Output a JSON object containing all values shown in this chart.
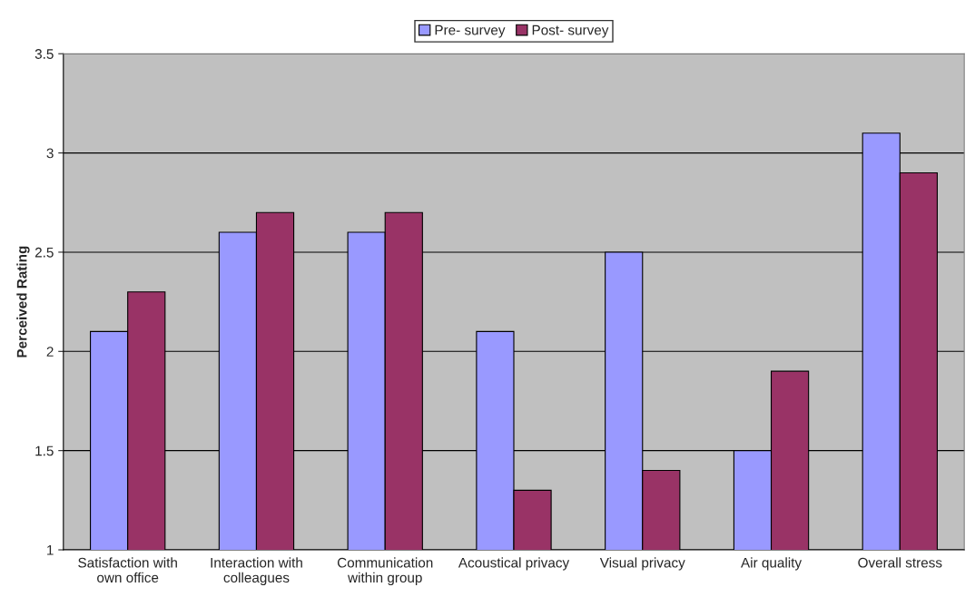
{
  "chart_data": {
    "type": "bar",
    "ylabel": "Perceived Rating",
    "categories": [
      "Satisfaction with\nown office",
      "Interaction with\ncolleagues",
      "Communication\nwithin group",
      "Acoustical privacy",
      "Visual privacy",
      "Air quality",
      "Overall stress"
    ],
    "series": [
      {
        "name": "Pre- survey",
        "color": "#9999ff",
        "values": [
          2.1,
          2.6,
          2.6,
          2.1,
          2.5,
          1.5,
          3.1
        ]
      },
      {
        "name": "Post- survey",
        "color": "#993366",
        "values": [
          2.3,
          2.7,
          2.7,
          1.3,
          1.4,
          1.9,
          2.9
        ]
      }
    ],
    "ylim": [
      1,
      3.5
    ],
    "yticks": [
      1,
      1.5,
      2,
      2.5,
      3,
      3.5
    ],
    "grid": "y",
    "legend": "top"
  }
}
